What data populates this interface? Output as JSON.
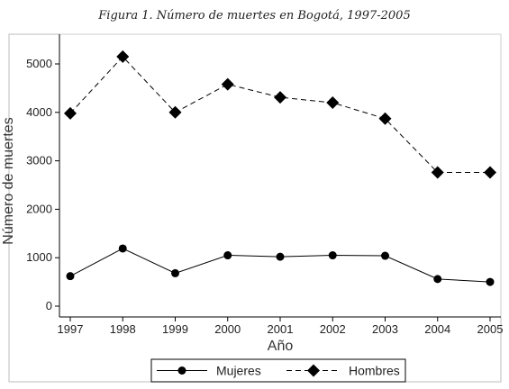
{
  "figure_title": "Figura 1. Número de muertes en Bogotá, 1997-2005",
  "chart_data": {
    "type": "line",
    "title": "Figura 1. Número de muertes en Bogotá, 1997-2005",
    "xlabel": "Año",
    "ylabel": "Número de muertes",
    "x": [
      1997,
      1998,
      1999,
      2000,
      2001,
      2002,
      2003,
      2004,
      2005
    ],
    "x_tick_labels": [
      "1997",
      "1998",
      "1999",
      "2000",
      "2001",
      "2002",
      "2003",
      "2004",
      "2005"
    ],
    "y_ticks": [
      0,
      1000,
      2000,
      3000,
      4000,
      5000
    ],
    "y_tick_labels": [
      "0",
      "1000",
      "2000",
      "3000",
      "4000",
      "5000"
    ],
    "ylim": [
      -100,
      5380
    ],
    "grid": false,
    "legend_position": "bottom",
    "series": [
      {
        "name": "Mujeres",
        "values": [
          620,
          1190,
          680,
          1050,
          1020,
          1050,
          1040,
          560,
          500
        ],
        "line_style": "solid",
        "marker": "circle",
        "color": "#000000"
      },
      {
        "name": "Hombres",
        "values": [
          3980,
          5150,
          4000,
          4580,
          4310,
          4200,
          3870,
          2760,
          2760
        ],
        "line_style": "dashed",
        "marker": "diamond",
        "color": "#000000"
      }
    ]
  }
}
